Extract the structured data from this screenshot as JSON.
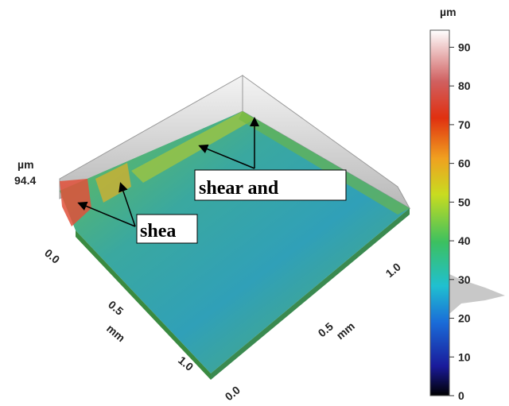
{
  "figure": {
    "colorbar": {
      "unit": "µm",
      "ticks": [
        0,
        10,
        20,
        30,
        40,
        50,
        60,
        70,
        80,
        90
      ],
      "max": 94.4
    },
    "z_axis": {
      "unit": "µm",
      "max_label": "94.4"
    },
    "left_axis": {
      "ticks": [
        "0.0",
        "0.5",
        "1.0"
      ],
      "unit": "mm"
    },
    "right_axis": {
      "ticks": [
        "0.0",
        "0.5",
        "1.0"
      ],
      "unit": "mm"
    },
    "annotations": [
      "shear and",
      "shea"
    ]
  }
}
